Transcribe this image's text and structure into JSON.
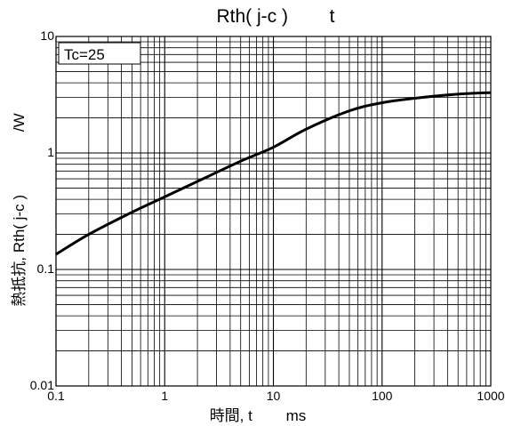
{
  "chart_data": {
    "type": "line",
    "title": "Rth( j-c )        t",
    "xlabel": "時間, t        ms",
    "ylabel": "熱抵抗, Rth( j-c )               /W",
    "x_scale": "log",
    "y_scale": "log",
    "xlim": [
      0.1,
      1000
    ],
    "ylim": [
      0.01,
      10
    ],
    "x_ticks": [
      "0.1",
      "1",
      "10",
      "100",
      "1000"
    ],
    "y_ticks": [
      "0.01",
      "0.1",
      "1",
      "10"
    ],
    "grid": true,
    "annotation": "Tc=25",
    "series": [
      {
        "x": [
          0.1,
          0.2,
          0.5,
          1,
          2,
          5,
          10,
          20,
          50,
          100,
          200,
          500,
          1000
        ],
        "y": [
          0.135,
          0.2,
          0.31,
          0.42,
          0.57,
          0.85,
          1.12,
          1.6,
          2.3,
          2.7,
          2.95,
          3.2,
          3.3
        ]
      }
    ]
  },
  "colors": {
    "line": "#000000",
    "grid": "#000000",
    "background": "#ffffff"
  }
}
